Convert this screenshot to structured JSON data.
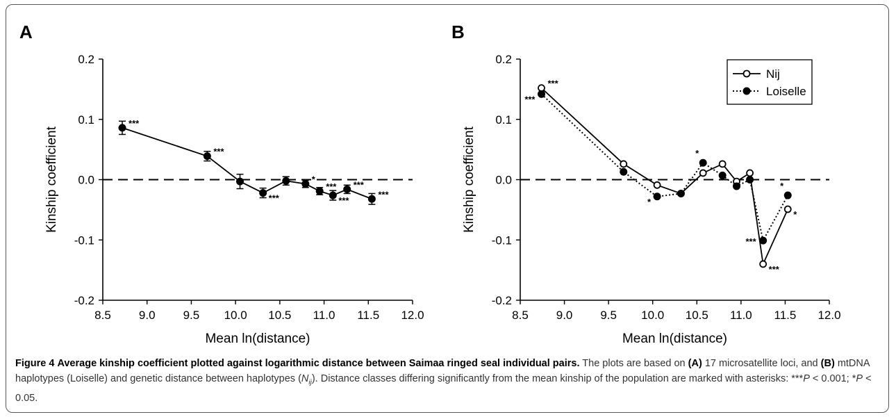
{
  "chart_data": [
    {
      "type": "line",
      "panel_label": "A",
      "xlabel": "Mean ln(distance)",
      "ylabel": "Kinship coefficient",
      "xlim": [
        8.5,
        12.0
      ],
      "ylim": [
        -0.2,
        0.2
      ],
      "xticks": [
        "8.5",
        "9.0",
        "9.5",
        "10.0",
        "10.5",
        "11.0",
        "11.5",
        "12.0"
      ],
      "yticks": [
        "0.2",
        "0.1",
        "0.0",
        "-0.1",
        "-0.2"
      ],
      "reference_line": 0.0,
      "series": [
        {
          "marker": "filled",
          "line": "solid",
          "points": [
            {
              "x": 8.72,
              "y": 0.086,
              "err": 0.011,
              "sig": "***",
              "label_pos": "above-right"
            },
            {
              "x": 9.68,
              "y": 0.039,
              "err": 0.008,
              "sig": "***",
              "label_pos": "above-right"
            },
            {
              "x": 10.05,
              "y": -0.003,
              "err": 0.012,
              "sig": "",
              "label_pos": ""
            },
            {
              "x": 10.31,
              "y": -0.022,
              "err": 0.008,
              "sig": "***",
              "label_pos": "below-right"
            },
            {
              "x": 10.57,
              "y": -0.002,
              "err": 0.007,
              "sig": "",
              "label_pos": ""
            },
            {
              "x": 10.79,
              "y": -0.007,
              "err": 0.006,
              "sig": "*",
              "label_pos": "above-right"
            },
            {
              "x": 10.95,
              "y": -0.019,
              "err": 0.006,
              "sig": "***",
              "label_pos": "above-right"
            },
            {
              "x": 11.1,
              "y": -0.026,
              "err": 0.008,
              "sig": "***",
              "label_pos": "below-right"
            },
            {
              "x": 11.26,
              "y": -0.016,
              "err": 0.007,
              "sig": "***",
              "label_pos": "above-right"
            },
            {
              "x": 11.54,
              "y": -0.032,
              "err": 0.009,
              "sig": "***",
              "label_pos": "above-right"
            }
          ]
        }
      ]
    },
    {
      "type": "line",
      "panel_label": "B",
      "xlabel": "Mean ln(distance)",
      "ylabel": "Kinship coefficient",
      "xlim": [
        8.5,
        12.0
      ],
      "ylim": [
        -0.2,
        0.2
      ],
      "xticks": [
        "8.5",
        "9.0",
        "9.5",
        "10.0",
        "10.5",
        "11.0",
        "11.5",
        "12.0"
      ],
      "yticks": [
        "0.2",
        "0.1",
        "0.0",
        "-0.1",
        "-0.2"
      ],
      "reference_line": 0.0,
      "legend_position": "top-right",
      "series": [
        {
          "name": "Nij",
          "marker": "open",
          "line": "solid",
          "points": [
            {
              "x": 8.74,
              "y": 0.152,
              "sig": "***",
              "label_pos": "above-right"
            },
            {
              "x": 9.67,
              "y": 0.026,
              "sig": "",
              "label_pos": ""
            },
            {
              "x": 10.05,
              "y": -0.009,
              "sig": "",
              "label_pos": ""
            },
            {
              "x": 10.32,
              "y": -0.023,
              "sig": "",
              "label_pos": ""
            },
            {
              "x": 10.57,
              "y": 0.011,
              "sig": "",
              "label_pos": ""
            },
            {
              "x": 10.79,
              "y": 0.026,
              "sig": "",
              "label_pos": ""
            },
            {
              "x": 10.95,
              "y": -0.003,
              "sig": "",
              "label_pos": ""
            },
            {
              "x": 11.1,
              "y": 0.011,
              "sig": "",
              "label_pos": ""
            },
            {
              "x": 11.25,
              "y": -0.14,
              "sig": "***",
              "label_pos": "below-right"
            },
            {
              "x": 11.53,
              "y": -0.049,
              "sig": "*",
              "label_pos": "below-right"
            }
          ]
        },
        {
          "name": "Loiselle",
          "marker": "filled",
          "line": "dotted",
          "points": [
            {
              "x": 8.74,
              "y": 0.142,
              "sig": "***",
              "label_pos": "below-left"
            },
            {
              "x": 9.67,
              "y": 0.013,
              "sig": "",
              "label_pos": ""
            },
            {
              "x": 10.05,
              "y": -0.028,
              "sig": "*",
              "label_pos": "below-left"
            },
            {
              "x": 10.32,
              "y": -0.023,
              "sig": "",
              "label_pos": ""
            },
            {
              "x": 10.57,
              "y": 0.028,
              "sig": "*",
              "label_pos": "above-left"
            },
            {
              "x": 10.79,
              "y": 0.007,
              "sig": "",
              "label_pos": ""
            },
            {
              "x": 10.95,
              "y": -0.011,
              "sig": "",
              "label_pos": ""
            },
            {
              "x": 11.1,
              "y": 0.0,
              "sig": "",
              "label_pos": ""
            },
            {
              "x": 11.25,
              "y": -0.101,
              "sig": "***",
              "label_pos": "left"
            },
            {
              "x": 11.53,
              "y": -0.026,
              "sig": "*",
              "label_pos": "above-left"
            }
          ]
        }
      ]
    }
  ],
  "caption": {
    "figure_label": "Figure 4",
    "title": "Average kinship coefficient plotted against logarithmic distance between Saimaa ringed seal individual pairs.",
    "text_1": "The plots are based on",
    "ref_a": "(A)",
    "text_2": "17 microsatellite loci, and",
    "ref_b": "(B)",
    "text_3": "mtDNA haplotypes (Loiselle) and genetic distance between haplotypes (",
    "nij_main": "N",
    "nij_sub": "ij",
    "text_4": "). Distance classes differing significantly from the mean kinship of the population are marked with asterisks: ***",
    "p1_italic": "P",
    "p1_rest": " < 0.001; *",
    "p2_italic": "P",
    "p2_rest": " < 0.05."
  }
}
